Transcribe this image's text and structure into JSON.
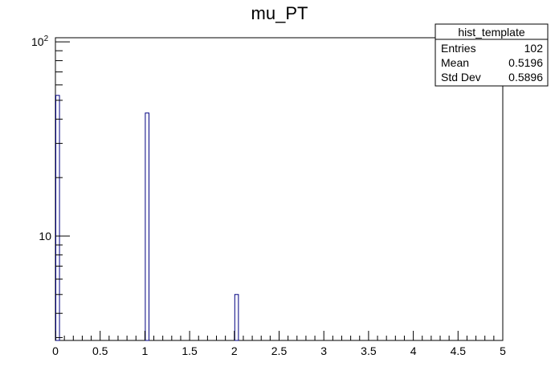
{
  "chart_data": {
    "type": "bar",
    "title": "mu_PT",
    "xlabel": "",
    "ylabel": "",
    "x_ticks": [
      0,
      0.5,
      1,
      1.5,
      2,
      2.5,
      3,
      3.5,
      4,
      4.5,
      5
    ],
    "x_tick_labels": [
      "0",
      "0.5",
      "1",
      "1.5",
      "2",
      "2.5",
      "3",
      "3.5",
      "4",
      "4.5",
      "5"
    ],
    "xlim": [
      0,
      5
    ],
    "ylim": [
      2.9,
      105
    ],
    "y_scale": "log",
    "y_tick_labels": [
      {
        "value": 10,
        "text": "10"
      },
      {
        "value": 100,
        "base": "10",
        "exponent": "2"
      }
    ],
    "bin_width": 0.05,
    "bins": [
      {
        "x_low": 0.0,
        "x_high": 0.05,
        "count": 53
      },
      {
        "x_low": 1.0,
        "x_high": 1.05,
        "count": 43
      },
      {
        "x_low": 2.0,
        "x_high": 2.05,
        "count": 5
      }
    ],
    "bar_stroke_color": "#000080",
    "bar_fill_color": "#ffffff",
    "grid": false,
    "legend": "none",
    "stats_box": {
      "placement": "top-right",
      "title": "hist_template",
      "rows": [
        {
          "label": "Entries",
          "value": "102"
        },
        {
          "label": "Mean",
          "value": "0.5196"
        },
        {
          "label": "Std Dev",
          "value": "0.5896"
        }
      ]
    }
  }
}
